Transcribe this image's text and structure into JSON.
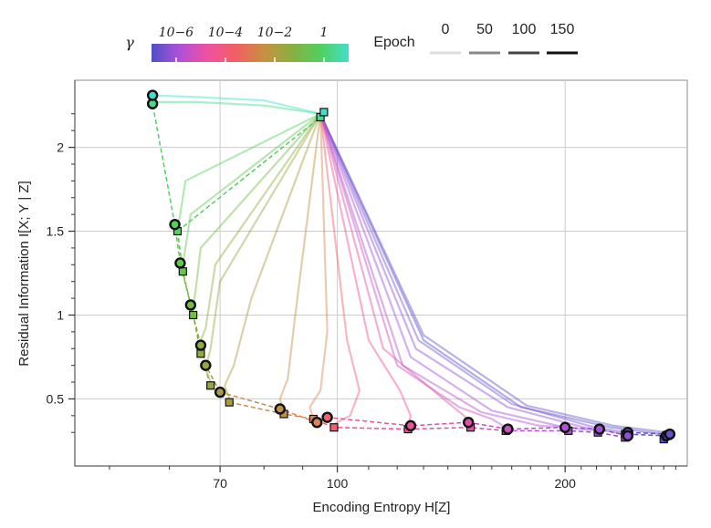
{
  "chart_data": {
    "type": "line",
    "subtype": "information-plane trajectories",
    "xlabel": "Encoding Entropy H[Z]",
    "ylabel": "Residual Information I[X; Y | Z]",
    "xscale": "log",
    "xlim": [
      45,
      290
    ],
    "ylim": [
      0.1,
      2.4
    ],
    "xticks": [
      70,
      100,
      200
    ],
    "xtick_labels": [
      "70",
      "100",
      "200"
    ],
    "yticks": [
      0.5,
      1,
      1.5,
      2
    ],
    "ytick_labels": [
      "0.5",
      "1",
      "1.5",
      "2"
    ],
    "grid": true,
    "colorbar": {
      "label": "γ",
      "scale": "log",
      "range": [
        1e-07,
        10
      ],
      "tick_values": [
        1e-06,
        0.0001,
        0.01,
        1
      ],
      "tick_labels": [
        "10−6",
        "10−4",
        "10−2",
        "1"
      ],
      "colormap": [
        "#5050c8",
        "#b050d8",
        "#f050a0",
        "#f06060",
        "#c89040",
        "#88b040",
        "#50d060",
        "#40e0c8"
      ]
    },
    "epoch_legend": {
      "title": "Epoch",
      "entries": [
        "0",
        "50",
        "100",
        "150"
      ],
      "shades": [
        "#dddddd",
        "#888888",
        "#444444",
        "#111111"
      ]
    },
    "start_point": {
      "x": 95,
      "y": 2.2
    },
    "series": [
      {
        "gamma": 2e-07,
        "color": "#5050c8",
        "circle": {
          "x": 272,
          "y": 0.28
        },
        "square": {
          "x": 270,
          "y": 0.26
        },
        "path": [
          [
            95,
            2.2
          ],
          [
            130,
            0.85
          ],
          [
            175,
            0.45
          ],
          [
            230,
            0.33
          ],
          [
            270,
            0.29
          ]
        ]
      },
      {
        "gamma": 5e-07,
        "color": "#6a50cc",
        "circle": {
          "x": 275,
          "y": 0.29
        },
        "square": {
          "x": 273,
          "y": 0.28
        },
        "path": [
          [
            95,
            2.2
          ],
          [
            130,
            0.88
          ],
          [
            178,
            0.46
          ],
          [
            232,
            0.34
          ],
          [
            273,
            0.3
          ]
        ]
      },
      {
        "gamma": 1e-06,
        "color": "#7e52d0",
        "circle": {
          "x": 242,
          "y": 0.3
        },
        "square": {
          "x": 240,
          "y": 0.29
        },
        "path": [
          [
            95,
            2.2
          ],
          [
            128,
            0.85
          ],
          [
            170,
            0.47
          ],
          [
            215,
            0.34
          ],
          [
            240,
            0.3
          ]
        ]
      },
      {
        "gamma": 2e-06,
        "color": "#9050d4",
        "circle": {
          "x": 242,
          "y": 0.28
        },
        "square": {
          "x": 240,
          "y": 0.27
        },
        "path": [
          [
            95,
            2.2
          ],
          [
            127,
            0.8
          ],
          [
            168,
            0.45
          ],
          [
            212,
            0.33
          ],
          [
            240,
            0.29
          ]
        ]
      },
      {
        "gamma": 5e-06,
        "color": "#a050d8",
        "circle": {
          "x": 222,
          "y": 0.32
        },
        "square": {
          "x": 221,
          "y": 0.3
        },
        "path": [
          [
            95,
            2.2
          ],
          [
            125,
            0.75
          ],
          [
            160,
            0.43
          ],
          [
            200,
            0.33
          ],
          [
            221,
            0.31
          ]
        ]
      },
      {
        "gamma": 1e-05,
        "color": "#b450d4",
        "circle": {
          "x": 200,
          "y": 0.33
        },
        "square": {
          "x": 202,
          "y": 0.31
        },
        "path": [
          [
            95,
            2.2
          ],
          [
            122,
            0.7
          ],
          [
            155,
            0.42
          ],
          [
            185,
            0.34
          ],
          [
            200,
            0.33
          ]
        ]
      },
      {
        "gamma": 3e-05,
        "color": "#c850c0",
        "circle": {
          "x": 168,
          "y": 0.32
        },
        "square": {
          "x": 167,
          "y": 0.31
        },
        "path": [
          [
            95,
            2.2
          ],
          [
            120,
            0.7
          ],
          [
            145,
            0.45
          ],
          [
            160,
            0.38
          ],
          [
            167,
            0.33
          ]
        ]
      },
      {
        "gamma": 0.0001,
        "color": "#e050a8",
        "circle": {
          "x": 149,
          "y": 0.36
        },
        "square": {
          "x": 150,
          "y": 0.33
        },
        "path": [
          [
            95,
            2.2
          ],
          [
            115,
            0.8
          ],
          [
            138,
            0.5
          ],
          [
            147,
            0.4
          ],
          [
            150,
            0.36
          ]
        ]
      },
      {
        "gamma": 0.0003,
        "color": "#f0509a",
        "circle": {
          "x": 125,
          "y": 0.34
        },
        "square": {
          "x": 124,
          "y": 0.32
        },
        "path": [
          [
            95,
            2.2
          ],
          [
            110,
            0.85
          ],
          [
            121,
            0.55
          ],
          [
            125,
            0.4
          ],
          [
            124,
            0.34
          ]
        ]
      },
      {
        "gamma": 0.001,
        "color": "#f06070",
        "circle": {
          "x": 97,
          "y": 0.39
        },
        "square": {
          "x": 99,
          "y": 0.33
        },
        "path": [
          [
            95,
            2.2
          ],
          [
            103,
            0.85
          ],
          [
            107,
            0.55
          ],
          [
            104,
            0.4
          ],
          [
            99,
            0.35
          ]
        ]
      },
      {
        "gamma": 0.003,
        "color": "#d88858",
        "circle": {
          "x": 94,
          "y": 0.36
        },
        "square": {
          "x": 93,
          "y": 0.38
        },
        "path": [
          [
            95,
            2.2
          ],
          [
            97,
            0.9
          ],
          [
            95,
            0.55
          ],
          [
            92,
            0.45
          ],
          [
            93,
            0.38
          ]
        ]
      },
      {
        "gamma": 0.01,
        "color": "#c09048",
        "circle": {
          "x": 84,
          "y": 0.44
        },
        "square": {
          "x": 85,
          "y": 0.41
        },
        "path": [
          [
            95,
            2.2
          ],
          [
            88,
            1.0
          ],
          [
            86,
            0.62
          ],
          [
            84,
            0.5
          ],
          [
            85,
            0.42
          ]
        ]
      },
      {
        "gamma": 0.03,
        "color": "#a89c44",
        "circle": {
          "x": 70,
          "y": 0.54
        },
        "square": {
          "x": 72,
          "y": 0.48
        },
        "path": [
          [
            95,
            2.2
          ],
          [
            77,
            1.1
          ],
          [
            73,
            0.7
          ],
          [
            71,
            0.58
          ],
          [
            72,
            0.5
          ]
        ]
      },
      {
        "gamma": 0.1,
        "color": "#98a640",
        "circle": {
          "x": 67,
          "y": 0.7
        },
        "square": {
          "x": 68,
          "y": 0.58
        },
        "path": [
          [
            95,
            2.2
          ],
          [
            70,
            1.2
          ],
          [
            68,
            0.8
          ],
          [
            67,
            0.68
          ],
          [
            68,
            0.6
          ]
        ]
      },
      {
        "gamma": 0.2,
        "color": "#8eac40",
        "circle": {
          "x": 66,
          "y": 0.82
        },
        "square": {
          "x": 66,
          "y": 0.77
        },
        "path": [
          [
            95,
            2.2
          ],
          [
            69,
            1.3
          ],
          [
            67,
            0.92
          ],
          [
            66,
            0.85
          ],
          [
            66,
            0.78
          ]
        ]
      },
      {
        "gamma": 0.5,
        "color": "#76bc48",
        "circle": {
          "x": 64,
          "y": 1.06
        },
        "square": {
          "x": 64.5,
          "y": 1.0
        },
        "path": [
          [
            95,
            2.2
          ],
          [
            66,
            1.4
          ],
          [
            65,
            1.15
          ],
          [
            64.5,
            1.05
          ],
          [
            64.5,
            1.0
          ]
        ]
      },
      {
        "gamma": 1,
        "color": "#62c850",
        "circle": {
          "x": 62,
          "y": 1.31
        },
        "square": {
          "x": 62.5,
          "y": 1.26
        },
        "path": [
          [
            95,
            2.2
          ],
          [
            64,
            1.6
          ],
          [
            63,
            1.4
          ],
          [
            62.5,
            1.3
          ],
          [
            62.5,
            1.26
          ]
        ]
      },
      {
        "gamma": 2,
        "color": "#52d060",
        "circle": {
          "x": 61,
          "y": 1.54
        },
        "square": {
          "x": 61.5,
          "y": 1.5
        },
        "path": [
          [
            95,
            2.2
          ],
          [
            63,
            1.8
          ],
          [
            62,
            1.6
          ],
          [
            61.5,
            1.52
          ],
          [
            61.5,
            1.5
          ]
        ]
      },
      {
        "gamma": 5,
        "color": "#48d890",
        "circle": {
          "x": 57,
          "y": 2.26
        },
        "square": {
          "x": 95,
          "y": 2.18
        },
        "path": [
          [
            95,
            2.2
          ],
          [
            80,
            2.25
          ],
          [
            65,
            2.27
          ],
          [
            57,
            2.27
          ]
        ]
      },
      {
        "gamma": 10,
        "color": "#40e0c8",
        "circle": {
          "x": 57,
          "y": 2.31
        },
        "square": {
          "x": 96,
          "y": 2.21
        },
        "path": [
          [
            95,
            2.2
          ],
          [
            80,
            2.28
          ],
          [
            65,
            2.3
          ],
          [
            57,
            2.31
          ]
        ]
      }
    ]
  }
}
